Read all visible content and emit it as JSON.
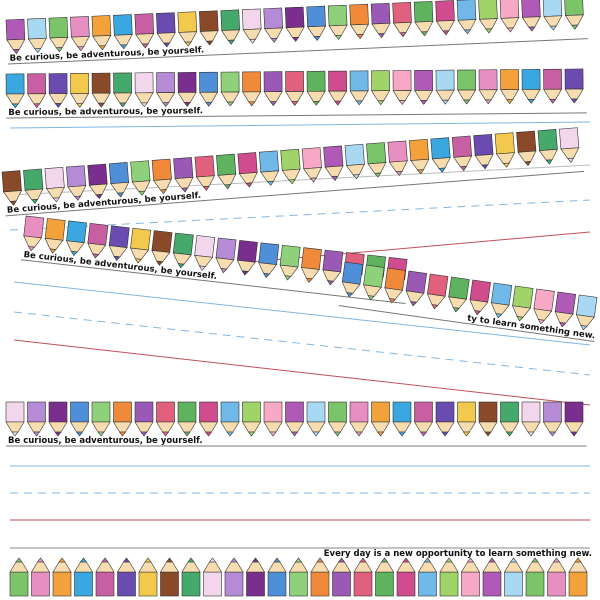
{
  "strips": [
    {
      "caption": "Be curious, be adventurous, be yourself."
    },
    {
      "caption": "Be curious, be adventurous, be yourself."
    },
    {
      "caption": "Be curious, be adventurous, be yourself."
    },
    {
      "caption": "Be curious, be adventurous, be yourself."
    },
    {
      "caption": "ty to learn something new."
    },
    {
      "caption": "Be curious, be adventurous, be yourself."
    }
  ],
  "footer": {
    "caption": "Every day is a new opportunity to learn something new."
  }
}
